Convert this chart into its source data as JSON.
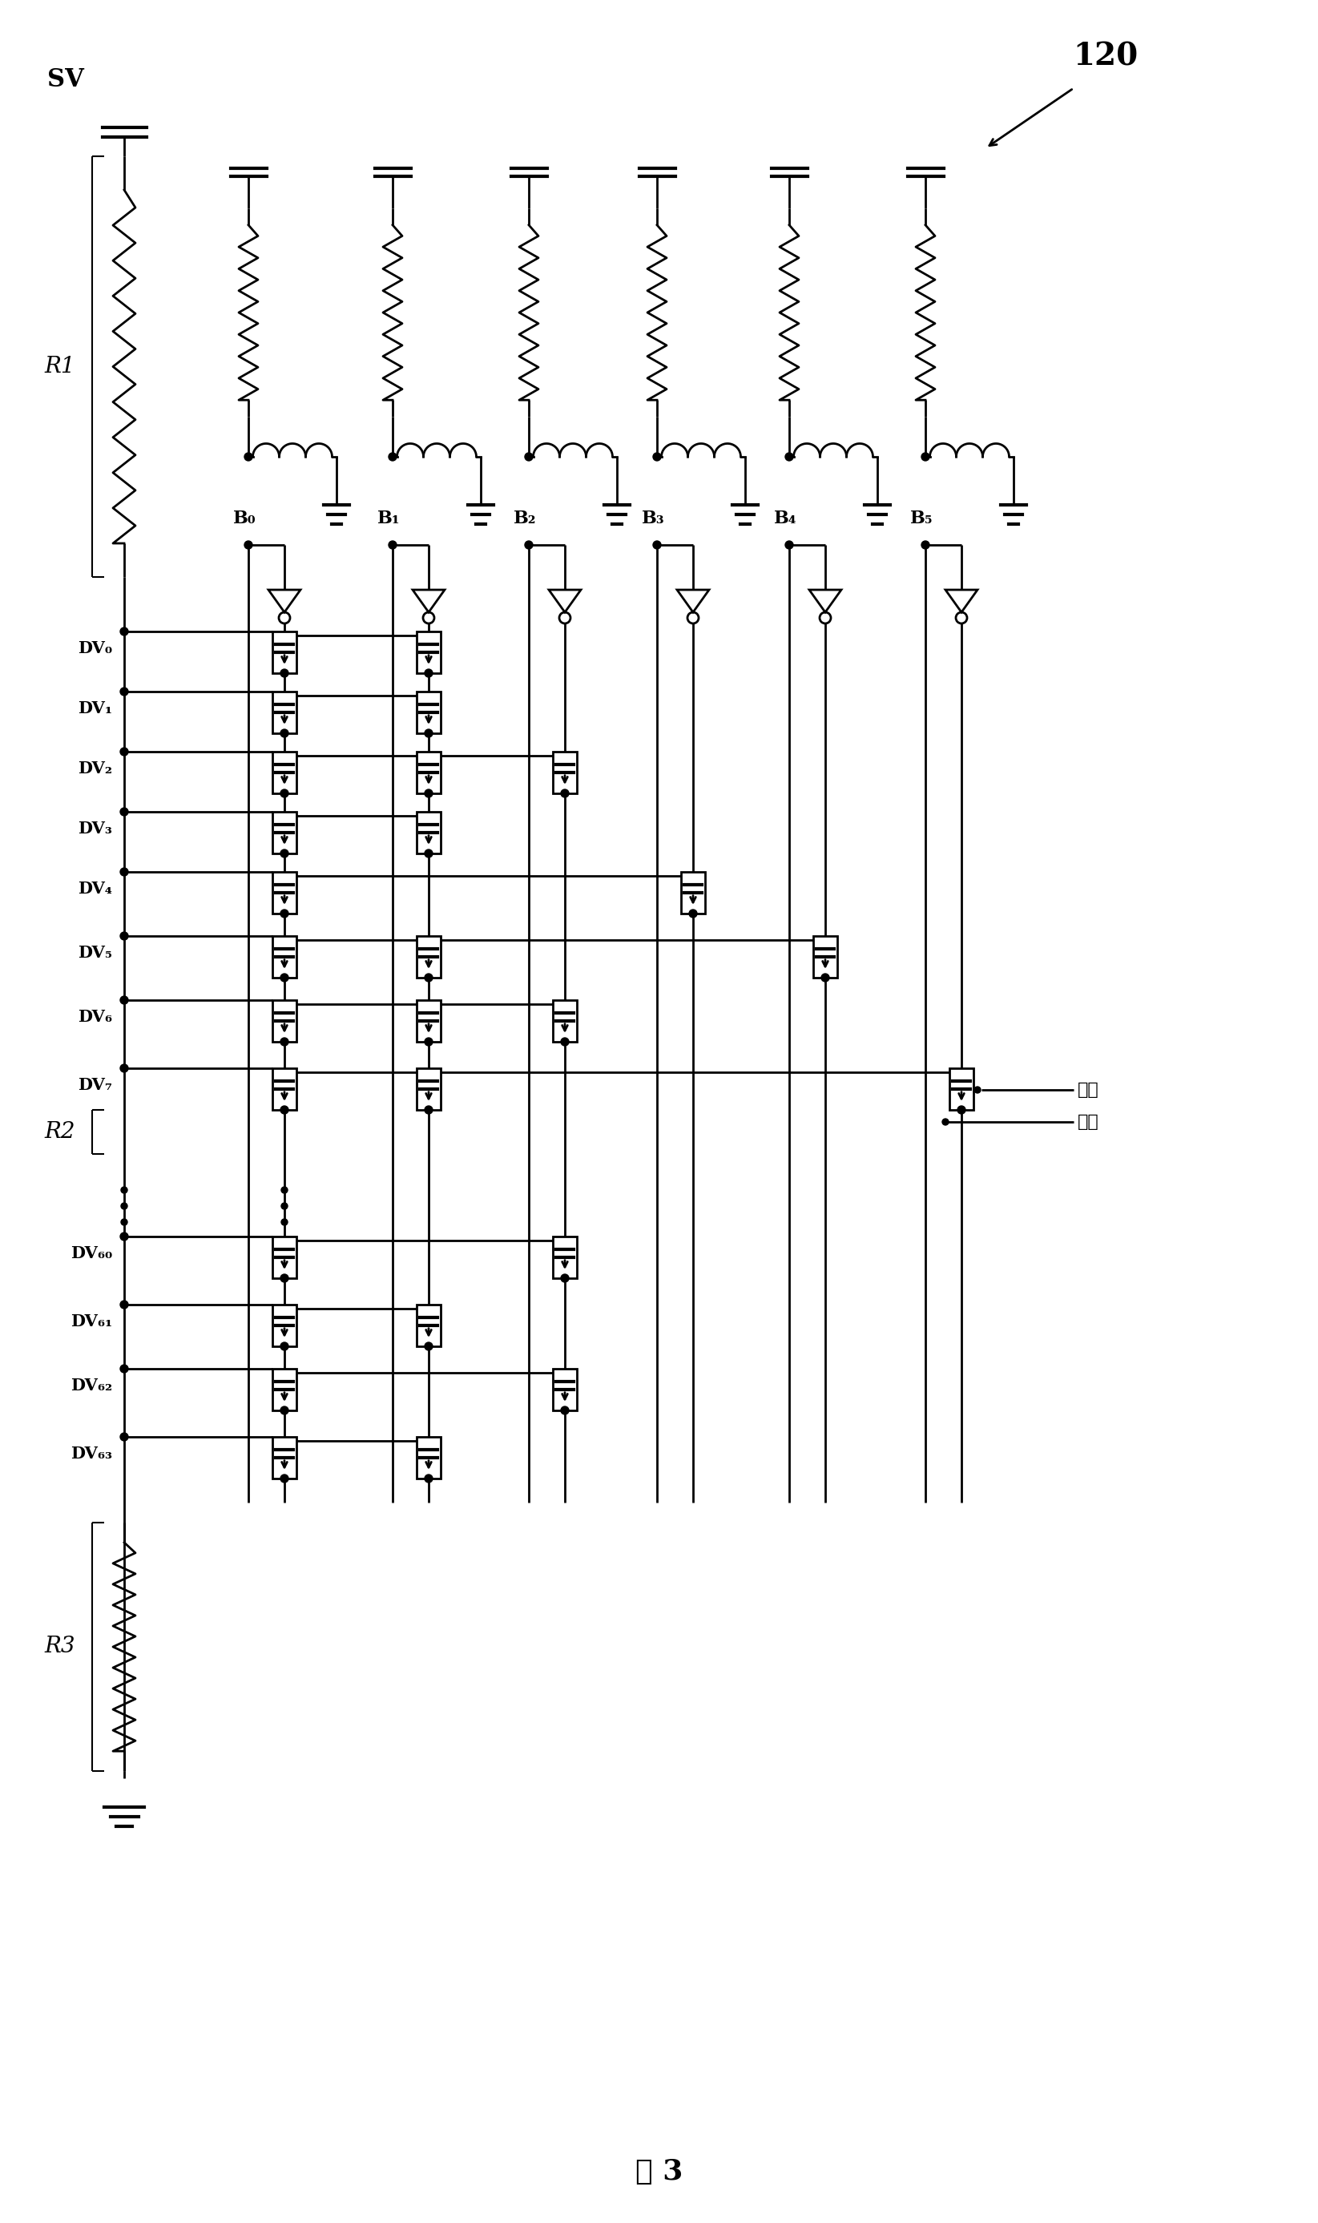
{
  "title": "图 3",
  "label_120": "120",
  "label_SV": "SV",
  "label_R1": "R1",
  "label_R2": "R2",
  "label_R3": "R3",
  "label_difen": "第一\n分压",
  "B_labels": [
    "B₀",
    "B₁",
    "B₂",
    "B₃",
    "B₄",
    "B₅"
  ],
  "DV_labels_top": [
    "DV₀",
    "DV₁",
    "DV₂",
    "DV₃",
    "DV₄",
    "DV₅",
    "DV₆",
    "DV₇"
  ],
  "DV_labels_bot": [
    "DV₆₀",
    "DV₆₁",
    "DV₆₂",
    "DV₆₃"
  ],
  "bg_color": "#ffffff",
  "line_color": "#000000"
}
